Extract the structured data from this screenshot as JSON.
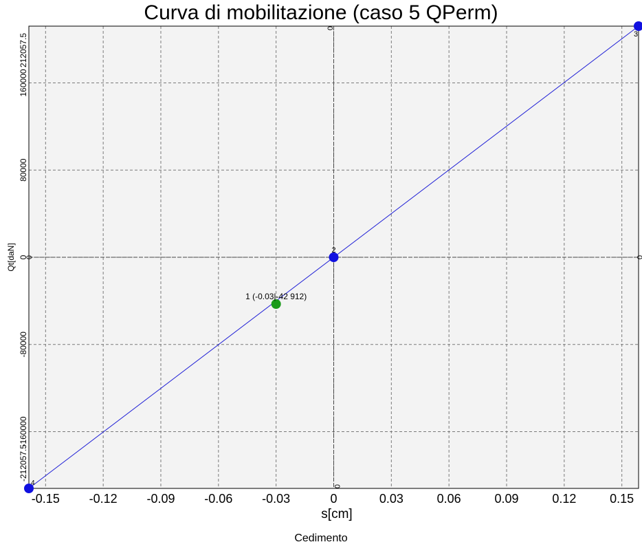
{
  "chart_data": {
    "type": "scatter",
    "title": "Curva di mobilitazione (caso 5 QPerm)",
    "caption": "Cedimento",
    "xlabel": "s[cm]",
    "ylabel": "Qt[daN]",
    "xlim": [
      -0.1587,
      0.1587
    ],
    "ylim": [
      -212057.5,
      212057.5
    ],
    "xticks": [
      -0.15,
      -0.12,
      -0.09,
      -0.06,
      -0.03,
      0,
      0.03,
      0.06,
      0.09,
      0.12,
      0.15
    ],
    "xtick_labels": [
      "-0.15",
      "-0.12",
      "-0.09",
      "-0.06",
      "-0.03",
      "0",
      "0.03",
      "0.06",
      "0.09",
      "0.12",
      "0.15"
    ],
    "yticks": [
      -212057.5,
      -160000,
      -80000,
      0,
      80000,
      160000,
      212057.5
    ],
    "ytick_labels": [
      "-212057.5",
      "-160000",
      "-80000",
      "0",
      "80000",
      "160000",
      "212057.5"
    ],
    "grid": true,
    "line": {
      "x": [
        -0.1587,
        0.1587
      ],
      "y": [
        -212057.5,
        212057.5
      ],
      "color": "#1f1fd6"
    },
    "points": [
      {
        "x": -0.1587,
        "y": -212057.5,
        "label": "4",
        "color": "#1010e0"
      },
      {
        "x": -0.03,
        "y": -42912,
        "label": "1 (-0.03|-42 912)",
        "color": "#1a9a1a"
      },
      {
        "x": 0,
        "y": 0,
        "label": "2",
        "color": "#1010e0"
      },
      {
        "x": 0.1587,
        "y": 212057.5,
        "label": "3",
        "color": "#1010e0"
      }
    ],
    "zero_marks": [
      "0",
      "0",
      "0",
      "0"
    ],
    "colors": {
      "grid": "#7a7a7a",
      "plot_bg": "#f2f2f2",
      "line": "#1f1fd6"
    }
  }
}
